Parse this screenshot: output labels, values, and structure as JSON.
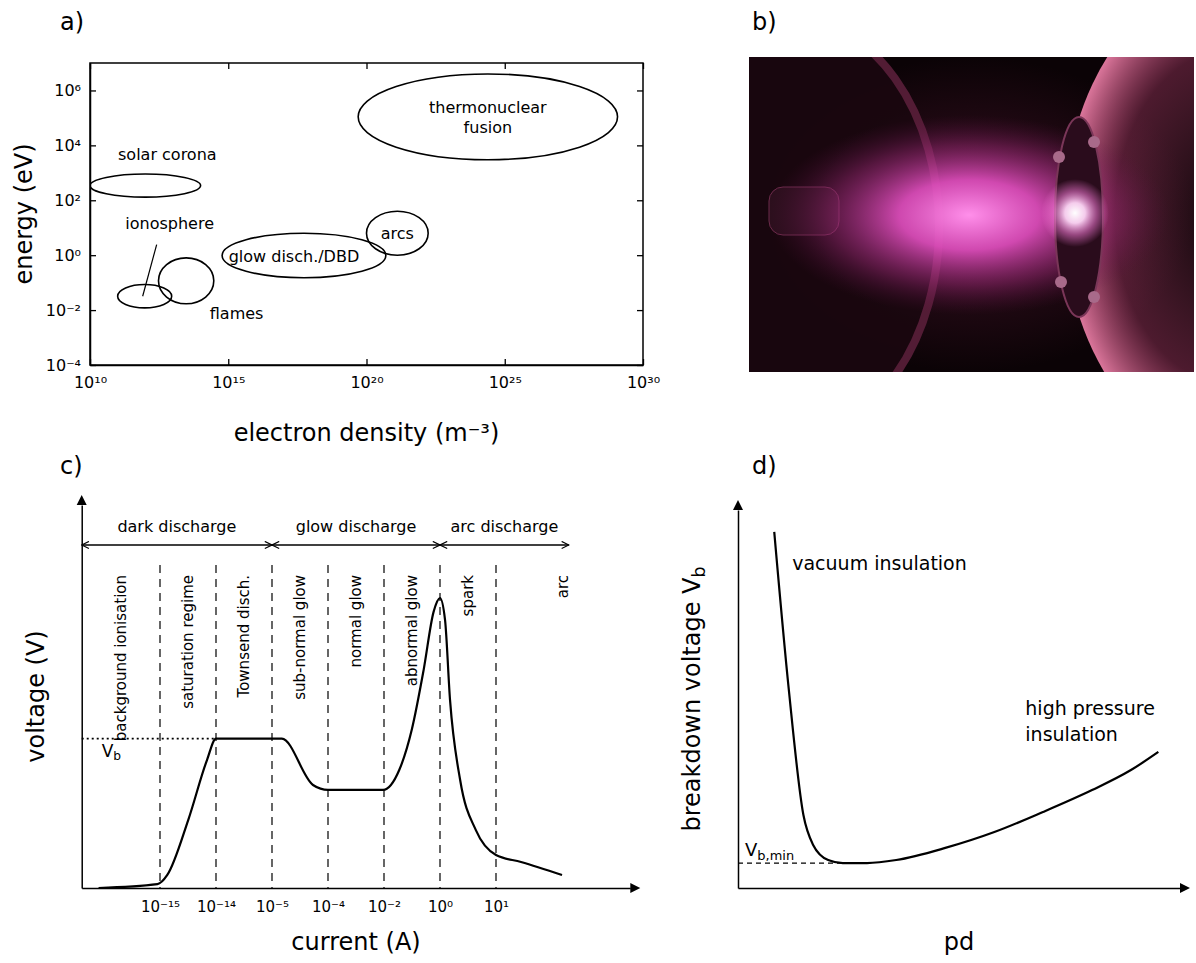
{
  "chart_data": [
    {
      "type": "region",
      "panel": "a)",
      "x_label": "electron density (m⁻³)",
      "y_label": "energy (eV)",
      "log": true,
      "xlim": [
        10000000000.0,
        1e+30
      ],
      "ylim": [
        0.0001,
        10000000.0
      ],
      "xticks": [
        {
          "value": 10000000000.0,
          "label": "10¹⁰"
        },
        {
          "value": 1000000000000000.0,
          "label": "10¹⁵"
        },
        {
          "value": 1e+20,
          "label": "10²⁰"
        },
        {
          "value": 1e+25,
          "label": "10²⁵"
        },
        {
          "value": 1e+30,
          "label": "10³⁰"
        }
      ],
      "yticks": [
        {
          "value": 0.0001,
          "label": "10⁻⁴"
        },
        {
          "value": 0.01,
          "label": "10⁻²"
        },
        {
          "value": 1,
          "label": "10⁰"
        },
        {
          "value": 100,
          "label": "10²"
        },
        {
          "value": 10000,
          "label": "10⁴"
        },
        {
          "value": 1000000,
          "label": "10⁶"
        }
      ],
      "regions": [
        {
          "label": "solar corona",
          "x": [
            10000000000.0,
            100000000000000.0
          ],
          "y": [
            130,
            900
          ]
        },
        {
          "label": "ionosphere",
          "x": [
            100000000000.0,
            9000000000000.0
          ],
          "y": [
            0.012,
            0.085
          ]
        },
        {
          "label": "flames",
          "x": [
            3000000000000.0,
            300000000000000.0
          ],
          "y": [
            0.017,
            0.8
          ]
        },
        {
          "label": "glow disch./DBD",
          "x": [
            600000000000000.0,
            5e+20
          ],
          "y": [
            0.15,
            6.3
          ]
        },
        {
          "label": "arcs",
          "x": [
            1e+20,
            1.7e+22
          ],
          "y": [
            1,
            40
          ]
        },
        {
          "label": "thermonuclear fusion",
          "x": [
            5e+19,
            1.2e+29
          ],
          "y": [
            3000,
            4000000
          ]
        }
      ]
    },
    {
      "type": "image",
      "panel": "b)"
    },
    {
      "type": "line",
      "panel": "c)",
      "x_label": "current (A)",
      "y_label": "voltage (V)",
      "log": "x",
      "grid": true,
      "tick_labels": "x",
      "xlim": [
        4e-17,
        2500
      ],
      "ylim": [
        0,
        100
      ],
      "xticks": [
        {
          "value": 1e-15,
          "label": "10⁻¹⁵"
        },
        {
          "value": 1e-14,
          "label": "10⁻¹⁴"
        },
        {
          "value": 1e-05,
          "label": "10⁻⁵"
        },
        {
          "value": 0.0001,
          "label": "10⁻⁴"
        },
        {
          "value": 0.01,
          "label": "10⁻²"
        },
        {
          "value": 1,
          "label": "10⁰"
        },
        {
          "value": 10,
          "label": "10¹"
        }
      ],
      "regions": [
        {
          "label": "dark discharge",
          "from": 4e-17,
          "to": 1e-05
        },
        {
          "label": "glow discharge",
          "from": 1e-05,
          "to": 1
        },
        {
          "label": "arc discharge",
          "from": 1,
          "to": 200
        }
      ],
      "phases": [
        {
          "label": "background ionisation",
          "from": 4e-17,
          "to": 1e-15
        },
        {
          "label": "saturation regime",
          "from": 1e-15,
          "to": 1e-14
        },
        {
          "label": "Townsend disch.",
          "from": 1e-14,
          "to": 1e-05
        },
        {
          "label": "sub-normal glow",
          "from": 1e-05,
          "to": 0.0001
        },
        {
          "label": "normal glow",
          "from": 0.0001,
          "to": 0.01
        },
        {
          "label": "abnormal glow",
          "from": 0.01,
          "to": 1
        },
        {
          "label": "spark",
          "from": 1,
          "to": 10
        },
        {
          "label": "arc",
          "from": 10,
          "to": 2500
        }
      ],
      "reference": {
        "label": "Vb",
        "value": 39
      },
      "x": [
        8e-17,
        9e-16,
        1.35e-15,
        3.2e-15,
        6.9e-15,
        1e-14,
        1.5e-05,
        5.4e-05,
        0.0001,
        0.0093,
        0.035,
        0.098,
        0.26,
        0.59,
        1,
        1.23,
        1.51,
        2.29,
        4.37,
        10,
        28,
        151
      ],
      "values": [
        0,
        1,
        3.4,
        17.8,
        33.4,
        39,
        39,
        26.9,
        25.6,
        25.6,
        30.8,
        41.3,
        56.9,
        72.1,
        75.7,
        70,
        49.1,
        28.2,
        15.1,
        8.6,
        6.8,
        3.4
      ]
    },
    {
      "type": "line",
      "panel": "d)",
      "x_label": "pd",
      "y_label": "breakdown voltage Vb",
      "tick_labels": false,
      "xlim": [
        0,
        100
      ],
      "ylim": [
        0,
        100
      ],
      "x": [
        8.2,
        11.5,
        14.8,
        17,
        20.4,
        23.7,
        29.2,
        35.8,
        46.9,
        58,
        69,
        80.1,
        88.9,
        95.1
      ],
      "values": [
        94.2,
        52.4,
        19.3,
        11.4,
        7.4,
        6.6,
        6.6,
        7.4,
        10.6,
        14.8,
        20.1,
        25.9,
        31.2,
        36
      ],
      "minimum": {
        "label": "Vb,min",
        "value": 6.6
      },
      "annotations": [
        "vacuum insulation",
        "high pressure insulation"
      ]
    }
  ]
}
